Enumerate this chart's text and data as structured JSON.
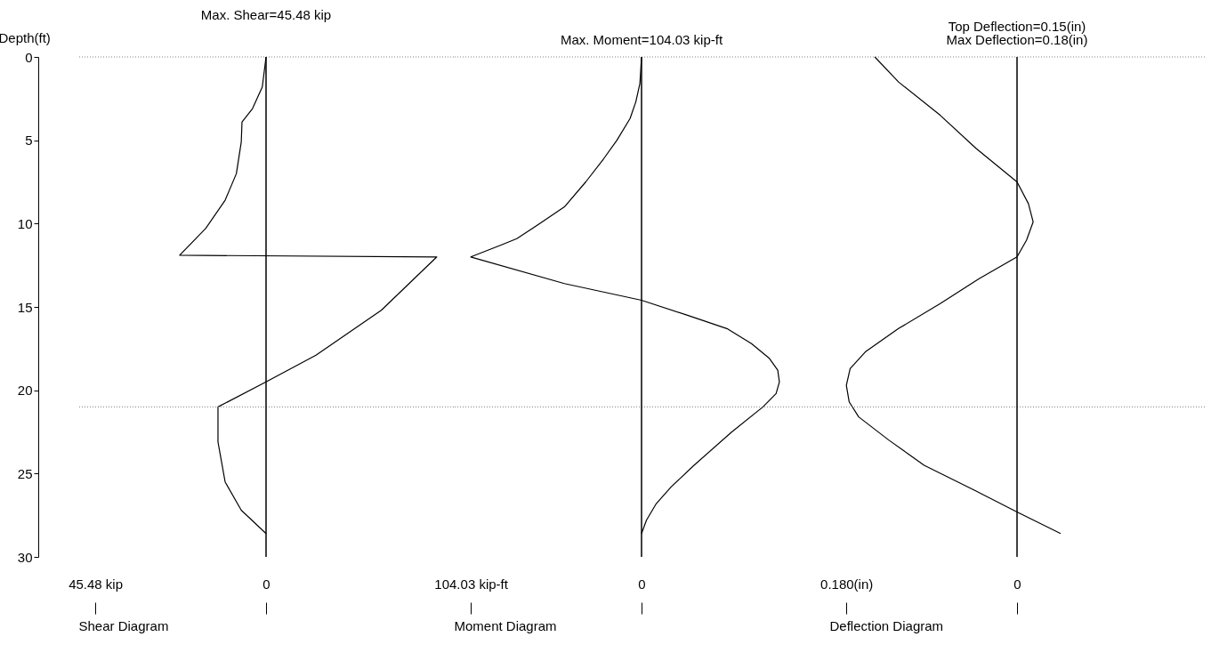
{
  "chart_data": [
    {
      "type": "line",
      "orientation": "horizontal",
      "title": "Max. Shear=45.48 kip",
      "xlabel": "Shear Diagram",
      "ylabel": "Depth(ft)",
      "xlim": [
        50,
        -50
      ],
      "xticks": [
        {
          "value": 45.48,
          "label": "45.48 kip"
        },
        0
      ],
      "ylim": [
        30,
        0
      ],
      "yticks": [
        0,
        5,
        10,
        15,
        20,
        25,
        30
      ],
      "grid": false,
      "series": [
        {
          "color": "#000000",
          "x": [
            0,
            1.8,
            3.1,
            3.9,
            5.1,
            7.0,
            8.6,
            10.3,
            11.9,
            12.0,
            15.2,
            17.9,
            19.5,
            21.0,
            23.1,
            25.5,
            27.2,
            28.6
          ],
          "values": [
            0,
            1,
            3.6,
            6.4,
            6.6,
            7.9,
            10.9,
            16.1,
            23.0,
            -45.48,
            -30.7,
            -13.3,
            0,
            12.8,
            12.8,
            10.9,
            6.6,
            0
          ]
        }
      ],
      "ref_lines": [
        {
          "axis": "y",
          "value": 0,
          "color": "#808080",
          "line_style": "dotted"
        },
        {
          "axis": "y",
          "value": 21,
          "color": "#808080",
          "line_style": "dotted"
        },
        {
          "axis": "x",
          "value": 0,
          "color": "#000000",
          "line_style": "solid"
        }
      ]
    },
    {
      "type": "line",
      "orientation": "horizontal",
      "title": "Max. Moment=104.03 kip-ft",
      "xlabel": "Moment Diagram",
      "xlim": [
        114.4,
        -114.4
      ],
      "xticks": [
        {
          "value": 104.03,
          "label": "104.03 kip-ft"
        },
        0
      ],
      "ylim": [
        30,
        0
      ],
      "yticks": [
        0,
        5,
        10,
        15,
        20,
        25,
        30
      ],
      "tick_labels": "x",
      "grid": false,
      "series": [
        {
          "color": "#000000",
          "x": [
            0,
            1.6,
            2.7,
            3.7,
            5.0,
            6.1,
            7.5,
            9.0,
            10.0,
            10.9,
            11.3,
            12.0,
            13.6,
            14.6,
            15.5,
            16.3,
            17.2,
            18.1,
            18.8,
            19.5,
            20.2,
            21.0,
            22.5,
            24.5,
            25.8,
            26.8,
            27.8,
            28.6
          ],
          "values": [
            0,
            1,
            3.5,
            7,
            15,
            23,
            34,
            47,
            62,
            76,
            86,
            104.03,
            47,
            0,
            -28,
            -52,
            -67,
            -78,
            -83,
            -84,
            -82,
            -74,
            -55,
            -32,
            -18,
            -9,
            -3,
            0
          ]
        }
      ],
      "ref_lines": [
        {
          "axis": "y",
          "value": 0,
          "color": "#808080",
          "line_style": "dotted"
        },
        {
          "axis": "y",
          "value": 21,
          "color": "#808080",
          "line_style": "dotted"
        },
        {
          "axis": "x",
          "value": 0,
          "color": "#000000",
          "line_style": "solid"
        }
      ]
    },
    {
      "type": "line",
      "orientation": "horizontal",
      "title": "Top Deflection=0.15(in)",
      "subtitle": "Max Deflection=0.18(in)",
      "xlabel": "Deflection Diagram",
      "xlim": [
        0.198,
        -0.198
      ],
      "xticks": [
        {
          "value": 0.18,
          "label": "0.180(in)"
        },
        {
          "value": 0,
          "label": "0"
        }
      ],
      "ylim": [
        30,
        0
      ],
      "yticks": [
        0,
        5,
        10,
        15,
        20,
        25,
        30
      ],
      "tick_labels": "x",
      "grid": false,
      "series": [
        {
          "color": "#000000",
          "x": [
            0,
            1.5,
            3.5,
            5.5,
            7.5,
            8.8,
            9.9,
            11.0,
            12.0,
            13.3,
            14.8,
            16.3,
            17.7,
            18.7,
            19.7,
            20.7,
            21.6,
            23.0,
            24.5,
            26.0,
            27.3,
            28.6
          ],
          "values": [
            0.15,
            0.125,
            0.081,
            0.043,
            0,
            -0.012,
            -0.017,
            -0.01,
            0,
            0.04,
            0.081,
            0.125,
            0.16,
            0.176,
            0.18,
            0.177,
            0.167,
            0.135,
            0.098,
            0.045,
            0,
            -0.046
          ]
        }
      ],
      "ref_lines": [
        {
          "axis": "y",
          "value": 0,
          "color": "#808080",
          "line_style": "dotted"
        },
        {
          "axis": "y",
          "value": 21,
          "color": "#808080",
          "line_style": "dotted"
        },
        {
          "axis": "x",
          "value": 0,
          "color": "#000000",
          "line_style": "solid"
        }
      ]
    }
  ]
}
